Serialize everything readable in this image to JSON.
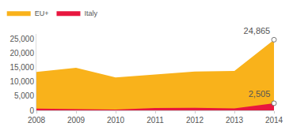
{
  "chart_data": {
    "type": "area",
    "categories": [
      "2008",
      "2009",
      "2010",
      "2011",
      "2012",
      "2013",
      "2014"
    ],
    "series": [
      {
        "name": "EU+",
        "color": "#f9b21b",
        "values": [
          13500,
          15000,
          11600,
          12600,
          13700,
          13900,
          24865
        ],
        "value_labels": [
          null,
          null,
          null,
          null,
          null,
          null,
          "24,865"
        ]
      },
      {
        "name": "Italy",
        "color": "#e8173f",
        "values": [
          600,
          400,
          300,
          800,
          900,
          700,
          2505
        ],
        "value_labels": [
          null,
          null,
          null,
          null,
          null,
          null,
          "2,505"
        ]
      }
    ],
    "stacked": false,
    "ylim": [
      0,
      27000
    ],
    "yticks": [
      0,
      {
        "value": 5000,
        "label": "5,000"
      },
      {
        "value": 10000,
        "label": "10,000"
      },
      {
        "value": 15000,
        "label": "15,000"
      },
      {
        "value": 20000,
        "label": "20,000"
      },
      {
        "value": 25000,
        "label": "25,000"
      }
    ],
    "grid": false,
    "legend": "top-left"
  }
}
